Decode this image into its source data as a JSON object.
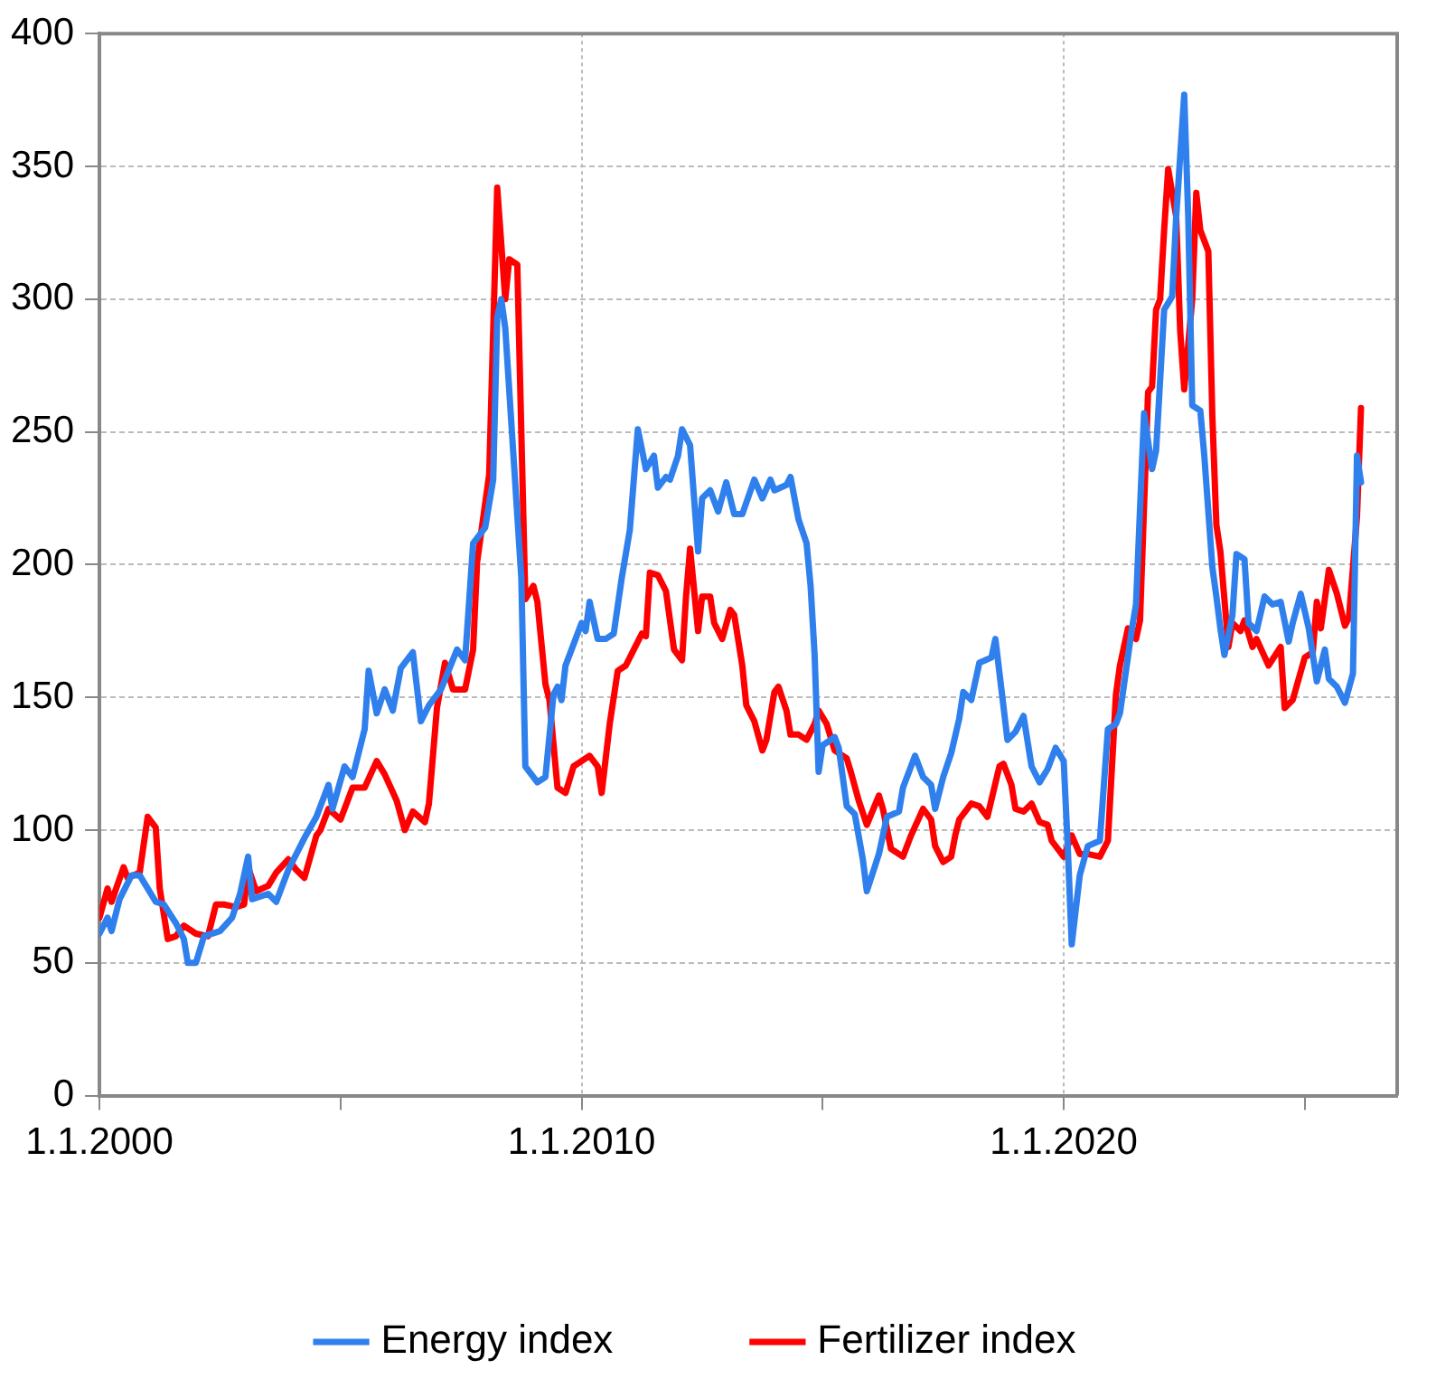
{
  "chart_data": {
    "type": "line",
    "series": [
      {
        "name": "Energy index",
        "color": "#2f80ed",
        "x": [
          "2000-01",
          "2000-03",
          "2000-04",
          "2000-06",
          "2000-09",
          "2000-11",
          "2001-03",
          "2001-05",
          "2001-08",
          "2001-10",
          "2001-11",
          "2002-01",
          "2002-03",
          "2002-07",
          "2002-10",
          "2002-12",
          "2003-02",
          "2003-03",
          "2003-07",
          "2003-09",
          "2003-12",
          "2004-04",
          "2004-07",
          "2004-10",
          "2004-11",
          "2005-02",
          "2005-04",
          "2005-07",
          "2005-08",
          "2005-10",
          "2005-12",
          "2006-02",
          "2006-04",
          "2006-07",
          "2006-09",
          "2006-11",
          "2007-02",
          "2007-06",
          "2007-08",
          "2007-10",
          "2008-01",
          "2008-03",
          "2008-04",
          "2008-05",
          "2008-06",
          "2008-10",
          "2008-11",
          "2009-02",
          "2009-04",
          "2009-06",
          "2009-07",
          "2009-08",
          "2009-09",
          "2009-11",
          "2010-01",
          "2010-02",
          "2010-03",
          "2010-05",
          "2010-07",
          "2010-09",
          "2010-11",
          "2011-01",
          "2011-03",
          "2011-05",
          "2011-07",
          "2011-08",
          "2011-10",
          "2011-11",
          "2012-01",
          "2012-02",
          "2012-04",
          "2012-06",
          "2012-07",
          "2012-09",
          "2012-11",
          "2013-01",
          "2013-03",
          "2013-05",
          "2013-08",
          "2013-10",
          "2013-12",
          "2014-01",
          "2014-04",
          "2014-05",
          "2014-07",
          "2014-09",
          "2014-10",
          "2014-11",
          "2014-12",
          "2015-01",
          "2015-04",
          "2015-05",
          "2015-07",
          "2015-09",
          "2015-11",
          "2015-12",
          "2016-03",
          "2016-05",
          "2016-08",
          "2016-09",
          "2016-12",
          "2017-02",
          "2017-04",
          "2017-05",
          "2017-07",
          "2017-09",
          "2017-11",
          "2017-12",
          "2018-02",
          "2018-04",
          "2018-07",
          "2018-08",
          "2018-11",
          "2019-01",
          "2019-03",
          "2019-05",
          "2019-07",
          "2019-09",
          "2019-11",
          "2020-01",
          "2020-02",
          "2020-03",
          "2020-05",
          "2020-07",
          "2020-10",
          "2020-12",
          "2021-02",
          "2021-03",
          "2021-06",
          "2021-07",
          "2021-09",
          "2021-11",
          "2021-12",
          "2022-02",
          "2022-04",
          "2022-05",
          "2022-07",
          "2022-08",
          "2022-09",
          "2022-11",
          "2022-12",
          "2023-02",
          "2023-03",
          "2023-04",
          "2023-05",
          "2023-07",
          "2023-08",
          "2023-10",
          "2023-11",
          "2024-01",
          "2024-03",
          "2024-05",
          "2024-07",
          "2024-09",
          "2024-10",
          "2024-12",
          "2025-02",
          "2025-04",
          "2025-06",
          "2025-07",
          "2025-09",
          "2025-11",
          "2026-01",
          "2026-02",
          "2026-03"
        ],
        "values": [
          61,
          67,
          62,
          74,
          83,
          83,
          73,
          72,
          65,
          59,
          50,
          50,
          60,
          62,
          67,
          76,
          90,
          74,
          76,
          73,
          85,
          97,
          105,
          117,
          108,
          124,
          120,
          138,
          160,
          144,
          153,
          145,
          161,
          167,
          141,
          147,
          153,
          168,
          164,
          208,
          214,
          232,
          293,
          300,
          289,
          195,
          124,
          118,
          120,
          151,
          154,
          149,
          162,
          170,
          178,
          175,
          186,
          172,
          172,
          174,
          195,
          213,
          251,
          236,
          241,
          229,
          233,
          232,
          241,
          251,
          245,
          205,
          225,
          228,
          220,
          231,
          219,
          219,
          232,
          225,
          232,
          228,
          230,
          233,
          217,
          208,
          192,
          166,
          122,
          132,
          135,
          131,
          109,
          106,
          89,
          77,
          91,
          105,
          107,
          116,
          128,
          120,
          117,
          108,
          120,
          129,
          142,
          152,
          149,
          163,
          165,
          172,
          134,
          137,
          143,
          124,
          118,
          123,
          131,
          126,
          94,
          57,
          83,
          94,
          96,
          138,
          140,
          144,
          176,
          185,
          257,
          236,
          243,
          296,
          301,
          331,
          377,
          331,
          260,
          258,
          241,
          199,
          188,
          176,
          166,
          181,
          204,
          202,
          178,
          175,
          188,
          185,
          186,
          171,
          178,
          189,
          176,
          156,
          168,
          157,
          154,
          148,
          159,
          241,
          231
        ]
      },
      {
        "name": "Fertilizer index",
        "color": "#ff0000",
        "x": [
          "2000-01",
          "2000-03",
          "2000-04",
          "2000-07",
          "2000-08",
          "2000-11",
          "2001-01",
          "2001-03",
          "2001-04",
          "2001-06",
          "2001-08",
          "2001-10",
          "2002-01",
          "2002-04",
          "2002-06",
          "2002-08",
          "2002-11",
          "2003-01",
          "2003-02",
          "2003-04",
          "2003-07",
          "2003-09",
          "2003-12",
          "2004-02",
          "2004-04",
          "2004-07",
          "2004-08",
          "2004-10",
          "2005-01",
          "2005-04",
          "2005-07",
          "2005-10",
          "2005-12",
          "2006-03",
          "2006-05",
          "2006-07",
          "2006-10",
          "2006-11",
          "2007-01",
          "2007-03",
          "2007-05",
          "2007-08",
          "2007-10",
          "2007-11",
          "2008-02",
          "2008-04",
          "2008-06",
          "2008-07",
          "2008-09",
          "2008-11",
          "2009-01",
          "2009-02",
          "2009-04",
          "2009-05",
          "2009-07",
          "2009-09",
          "2009-11",
          "2010-01",
          "2010-03",
          "2010-05",
          "2010-06",
          "2010-08",
          "2010-10",
          "2010-12",
          "2011-02",
          "2011-04",
          "2011-05",
          "2011-06",
          "2011-08",
          "2011-10",
          "2011-12",
          "2012-02",
          "2012-03",
          "2012-04",
          "2012-06",
          "2012-07",
          "2012-09",
          "2012-10",
          "2012-12",
          "2013-02",
          "2013-03",
          "2013-05",
          "2013-06",
          "2013-08",
          "2013-10",
          "2013-11",
          "2014-01",
          "2014-02",
          "2014-04",
          "2014-05",
          "2014-07",
          "2014-09",
          "2014-11",
          "2014-12",
          "2015-02",
          "2015-04",
          "2015-07",
          "2015-08",
          "2015-10",
          "2015-12",
          "2016-03",
          "2016-04",
          "2016-06",
          "2016-09",
          "2016-11",
          "2017-02",
          "2017-04",
          "2017-05",
          "2017-07",
          "2017-09",
          "2017-10",
          "2017-11",
          "2018-02",
          "2018-04",
          "2018-06",
          "2018-09",
          "2018-10",
          "2018-12",
          "2019-01",
          "2019-03",
          "2019-05",
          "2019-07",
          "2019-09",
          "2019-10",
          "2020-01",
          "2020-03",
          "2020-05",
          "2020-07",
          "2020-10",
          "2020-12",
          "2021-02",
          "2021-03",
          "2021-05",
          "2021-07",
          "2021-08",
          "2021-10",
          "2021-11",
          "2021-12",
          "2022-01",
          "2022-02",
          "2022-03",
          "2022-05",
          "2022-06",
          "2022-07",
          "2022-09",
          "2022-10",
          "2022-11",
          "2023-01",
          "2023-02",
          "2023-03",
          "2023-04",
          "2023-06",
          "2023-07",
          "2023-09",
          "2023-10",
          "2023-12",
          "2024-01",
          "2024-04",
          "2024-07",
          "2024-08",
          "2024-10",
          "2025-01",
          "2025-03",
          "2025-04",
          "2025-05",
          "2025-07",
          "2025-09",
          "2025-11",
          "2025-12",
          "2026-02",
          "2026-03"
        ],
        "values": [
          67,
          78,
          73,
          86,
          82,
          84,
          105,
          101,
          78,
          59,
          60,
          64,
          61,
          60,
          72,
          72,
          71,
          72,
          86,
          77,
          79,
          84,
          89,
          85,
          82,
          98,
          100,
          108,
          104,
          116,
          116,
          126,
          121,
          111,
          100,
          107,
          103,
          110,
          146,
          163,
          153,
          153,
          168,
          201,
          234,
          342,
          300,
          315,
          313,
          187,
          192,
          186,
          155,
          149,
          116,
          114,
          124,
          126,
          128,
          124,
          114,
          140,
          160,
          162,
          168,
          174,
          173,
          197,
          196,
          190,
          168,
          164,
          188,
          206,
          175,
          188,
          188,
          178,
          172,
          183,
          181,
          162,
          147,
          141,
          130,
          134,
          152,
          154,
          145,
          136,
          136,
          134,
          140,
          145,
          140,
          130,
          127,
          122,
          111,
          102,
          113,
          108,
          93,
          90,
          98,
          108,
          104,
          94,
          88,
          90,
          98,
          104,
          110,
          109,
          105,
          124,
          125,
          117,
          108,
          107,
          110,
          103,
          102,
          96,
          90,
          98,
          91,
          91,
          90,
          96,
          151,
          162,
          176,
          172,
          179,
          265,
          267,
          296,
          300,
          326,
          349,
          331,
          288,
          266,
          300,
          340,
          326,
          318,
          256,
          215,
          205,
          169,
          178,
          175,
          179,
          169,
          172,
          162,
          169,
          146,
          149,
          165,
          167,
          186,
          176,
          198,
          189,
          177,
          180,
          218,
          259
        ]
      }
    ],
    "xlim": [
      "2000-01-01",
      "2026-12-01"
    ],
    "xticks": [
      {
        "value": "2000-01-01",
        "label": "1.1.2000"
      },
      {
        "value": "2005-01-01",
        "label": null
      },
      {
        "value": "2010-01-01",
        "label": "1.1.2010"
      },
      {
        "value": "2015-01-01",
        "label": null
      },
      {
        "value": "2020-01-01",
        "label": "1.1.2020"
      },
      {
        "value": "2025-01-01",
        "label": null
      }
    ],
    "ylim": [
      0,
      400
    ],
    "yticks": [
      0,
      50,
      100,
      150,
      200,
      250,
      300,
      350,
      400
    ],
    "grid": true,
    "legend": "bottom",
    "marker": "none",
    "line_style": "solid"
  }
}
